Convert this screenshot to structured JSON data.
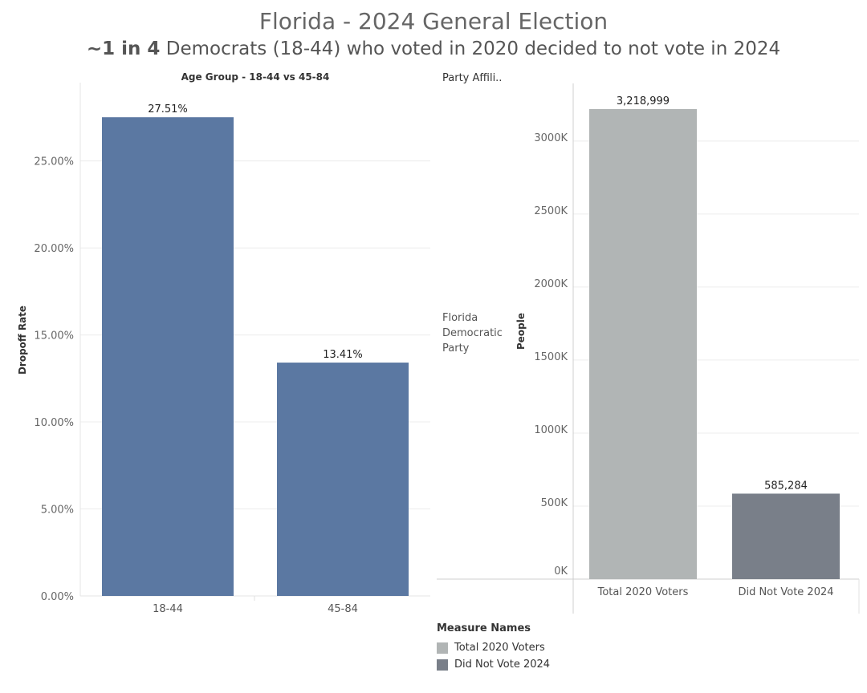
{
  "header": {
    "title": "Florida - 2024 General Election",
    "subtitle_bold": "~1 in 4",
    "subtitle_rest": " Democrats (18-44) who voted in 2020 decided to not vote in 2024"
  },
  "chart_data": [
    {
      "type": "bar",
      "title": "Age Group - 18-44 vs 45-84",
      "ylabel": "Dropoff Rate",
      "categories": [
        "18-44",
        "45-84"
      ],
      "values": [
        27.51,
        13.41
      ],
      "value_labels": [
        "27.51%",
        "13.41%"
      ],
      "ylim": [
        0,
        29.5
      ],
      "yticks": [
        0,
        5,
        10,
        15,
        20,
        25
      ],
      "ytick_labels": [
        "0.00%",
        "5.00%",
        "10.00%",
        "15.00%",
        "20.00%",
        "25.00%"
      ],
      "color": "#5b78a2",
      "grid": true
    },
    {
      "type": "bar",
      "row_header": "Party Affili..",
      "row_label": "Florida Democratic Party",
      "ylabel": "People",
      "categories": [
        "Total 2020 Voters",
        "Did Not Vote 2024"
      ],
      "values": [
        3218999,
        585284
      ],
      "value_labels": [
        "3,218,999",
        "585,284"
      ],
      "colors": [
        "#b1b5b5",
        "#797f89"
      ],
      "ylim": [
        0,
        3400000
      ],
      "yticks": [
        0,
        500000,
        1000000,
        1500000,
        2000000,
        2500000,
        3000000
      ],
      "ytick_labels": [
        "0K",
        "500K",
        "1000K",
        "1500K",
        "2000K",
        "2500K",
        "3000K"
      ],
      "grid": true,
      "legend": {
        "title": "Measure Names",
        "items": [
          {
            "label": "Total 2020 Voters",
            "color": "#b1b5b5"
          },
          {
            "label": "Did Not Vote 2024",
            "color": "#797f89"
          }
        ],
        "position": "bottom-left"
      }
    }
  ]
}
